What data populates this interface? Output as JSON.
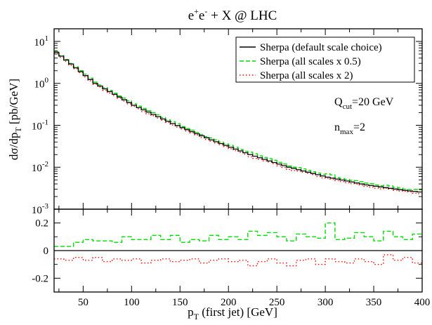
{
  "chart_data": [
    {
      "type": "line",
      "role": "main-panel",
      "title": {
        "base": "e",
        "sup1": "+",
        "mid": "e",
        "sup2": "-",
        "rest": " + X @ LHC"
      },
      "ylabel": {
        "pre": "dσ/dp",
        "sub": "T",
        "post": " [pb/GeV]"
      },
      "yscale": "log",
      "xlim": [
        20,
        400
      ],
      "ylim": [
        0.001,
        20
      ],
      "ytick_values": [
        0.001,
        0.01,
        0.1,
        1,
        10
      ],
      "ytick_labels": [
        {
          "base": "10",
          "exp": "-3"
        },
        {
          "base": "10",
          "exp": "-2"
        },
        {
          "base": "10",
          "exp": "-1"
        },
        {
          "base": "10",
          "exp": "0"
        },
        {
          "base": "10",
          "exp": "1"
        }
      ],
      "legend_position": "top-right",
      "series": [
        {
          "name": "Sherpa (default scale choice)",
          "color": "#000000",
          "style": "solid"
        },
        {
          "name": "Sherpa (all scales x 0.5)",
          "color": "#00dd00",
          "style": "dashed"
        },
        {
          "name": "Sherpa (all scales x 2)",
          "color": "#ff0000",
          "style": "dotted"
        }
      ],
      "x": [
        20,
        60,
        100,
        140,
        180,
        220,
        260,
        300,
        340,
        380,
        400
      ],
      "default_values": [
        5.5,
        1.0,
        0.3,
        0.11,
        0.045,
        0.02,
        0.01,
        0.0058,
        0.0038,
        0.0028,
        0.0025
      ],
      "annotations": [
        {
          "base": "Q",
          "sub": "cut",
          "rest": "=20 GeV"
        },
        {
          "base": "n",
          "sub": "max",
          "rest": "=2"
        }
      ]
    },
    {
      "type": "line",
      "role": "ratio-panel",
      "xlabel": {
        "pre": "p",
        "sub": "T",
        "post": " (first jet) [GeV]"
      },
      "xlim": [
        20,
        400
      ],
      "ylim": [
        -0.3,
        0.3
      ],
      "xtick_labels": [
        "50",
        "100",
        "150",
        "200",
        "250",
        "300",
        "350",
        "400"
      ],
      "ytick_labels": [
        "-0.2",
        "0",
        "0.2"
      ],
      "ytick_values": [
        -0.2,
        0,
        0.2
      ],
      "series": [
        {
          "name": "Sherpa (all scales x 0.5)",
          "color": "#00dd00",
          "style": "dashed",
          "x": [
            20,
            30,
            40,
            50,
            60,
            70,
            80,
            90,
            100,
            110,
            120,
            130,
            140,
            150,
            160,
            170,
            180,
            190,
            200,
            210,
            220,
            230,
            240,
            250,
            260,
            270,
            280,
            290,
            300,
            310,
            320,
            330,
            340,
            350,
            360,
            370,
            380,
            390,
            400
          ],
          "values": [
            0.03,
            0.03,
            0.06,
            0.08,
            0.07,
            0.07,
            0.06,
            0.1,
            0.08,
            0.08,
            0.11,
            0.08,
            0.11,
            0.06,
            0.08,
            0.07,
            0.11,
            0.08,
            0.1,
            0.08,
            0.14,
            0.11,
            0.13,
            0.1,
            0.07,
            0.12,
            0.1,
            0.09,
            0.2,
            0.08,
            0.09,
            0.13,
            0.1,
            0.07,
            0.14,
            0.1,
            0.08,
            0.12,
            0.12
          ]
        },
        {
          "name": "Sherpa (all scales x 2)",
          "color": "#ff0000",
          "style": "dotted",
          "x": [
            20,
            30,
            40,
            50,
            60,
            70,
            80,
            90,
            100,
            110,
            120,
            130,
            140,
            150,
            160,
            170,
            180,
            190,
            200,
            210,
            220,
            230,
            240,
            250,
            260,
            270,
            280,
            290,
            300,
            310,
            320,
            330,
            340,
            350,
            360,
            370,
            380,
            390,
            400
          ],
          "values": [
            -0.06,
            -0.07,
            -0.05,
            -0.07,
            -0.05,
            -0.08,
            -0.06,
            -0.07,
            -0.06,
            -0.09,
            -0.07,
            -0.06,
            -0.08,
            -0.07,
            -0.06,
            -0.09,
            -0.07,
            -0.06,
            -0.08,
            -0.07,
            -0.11,
            -0.08,
            -0.06,
            -0.09,
            -0.11,
            -0.07,
            -0.06,
            -0.1,
            -0.06,
            -0.08,
            -0.09,
            -0.06,
            -0.08,
            -0.1,
            -0.03,
            -0.07,
            -0.05,
            -0.09,
            -0.07
          ]
        }
      ]
    }
  ]
}
